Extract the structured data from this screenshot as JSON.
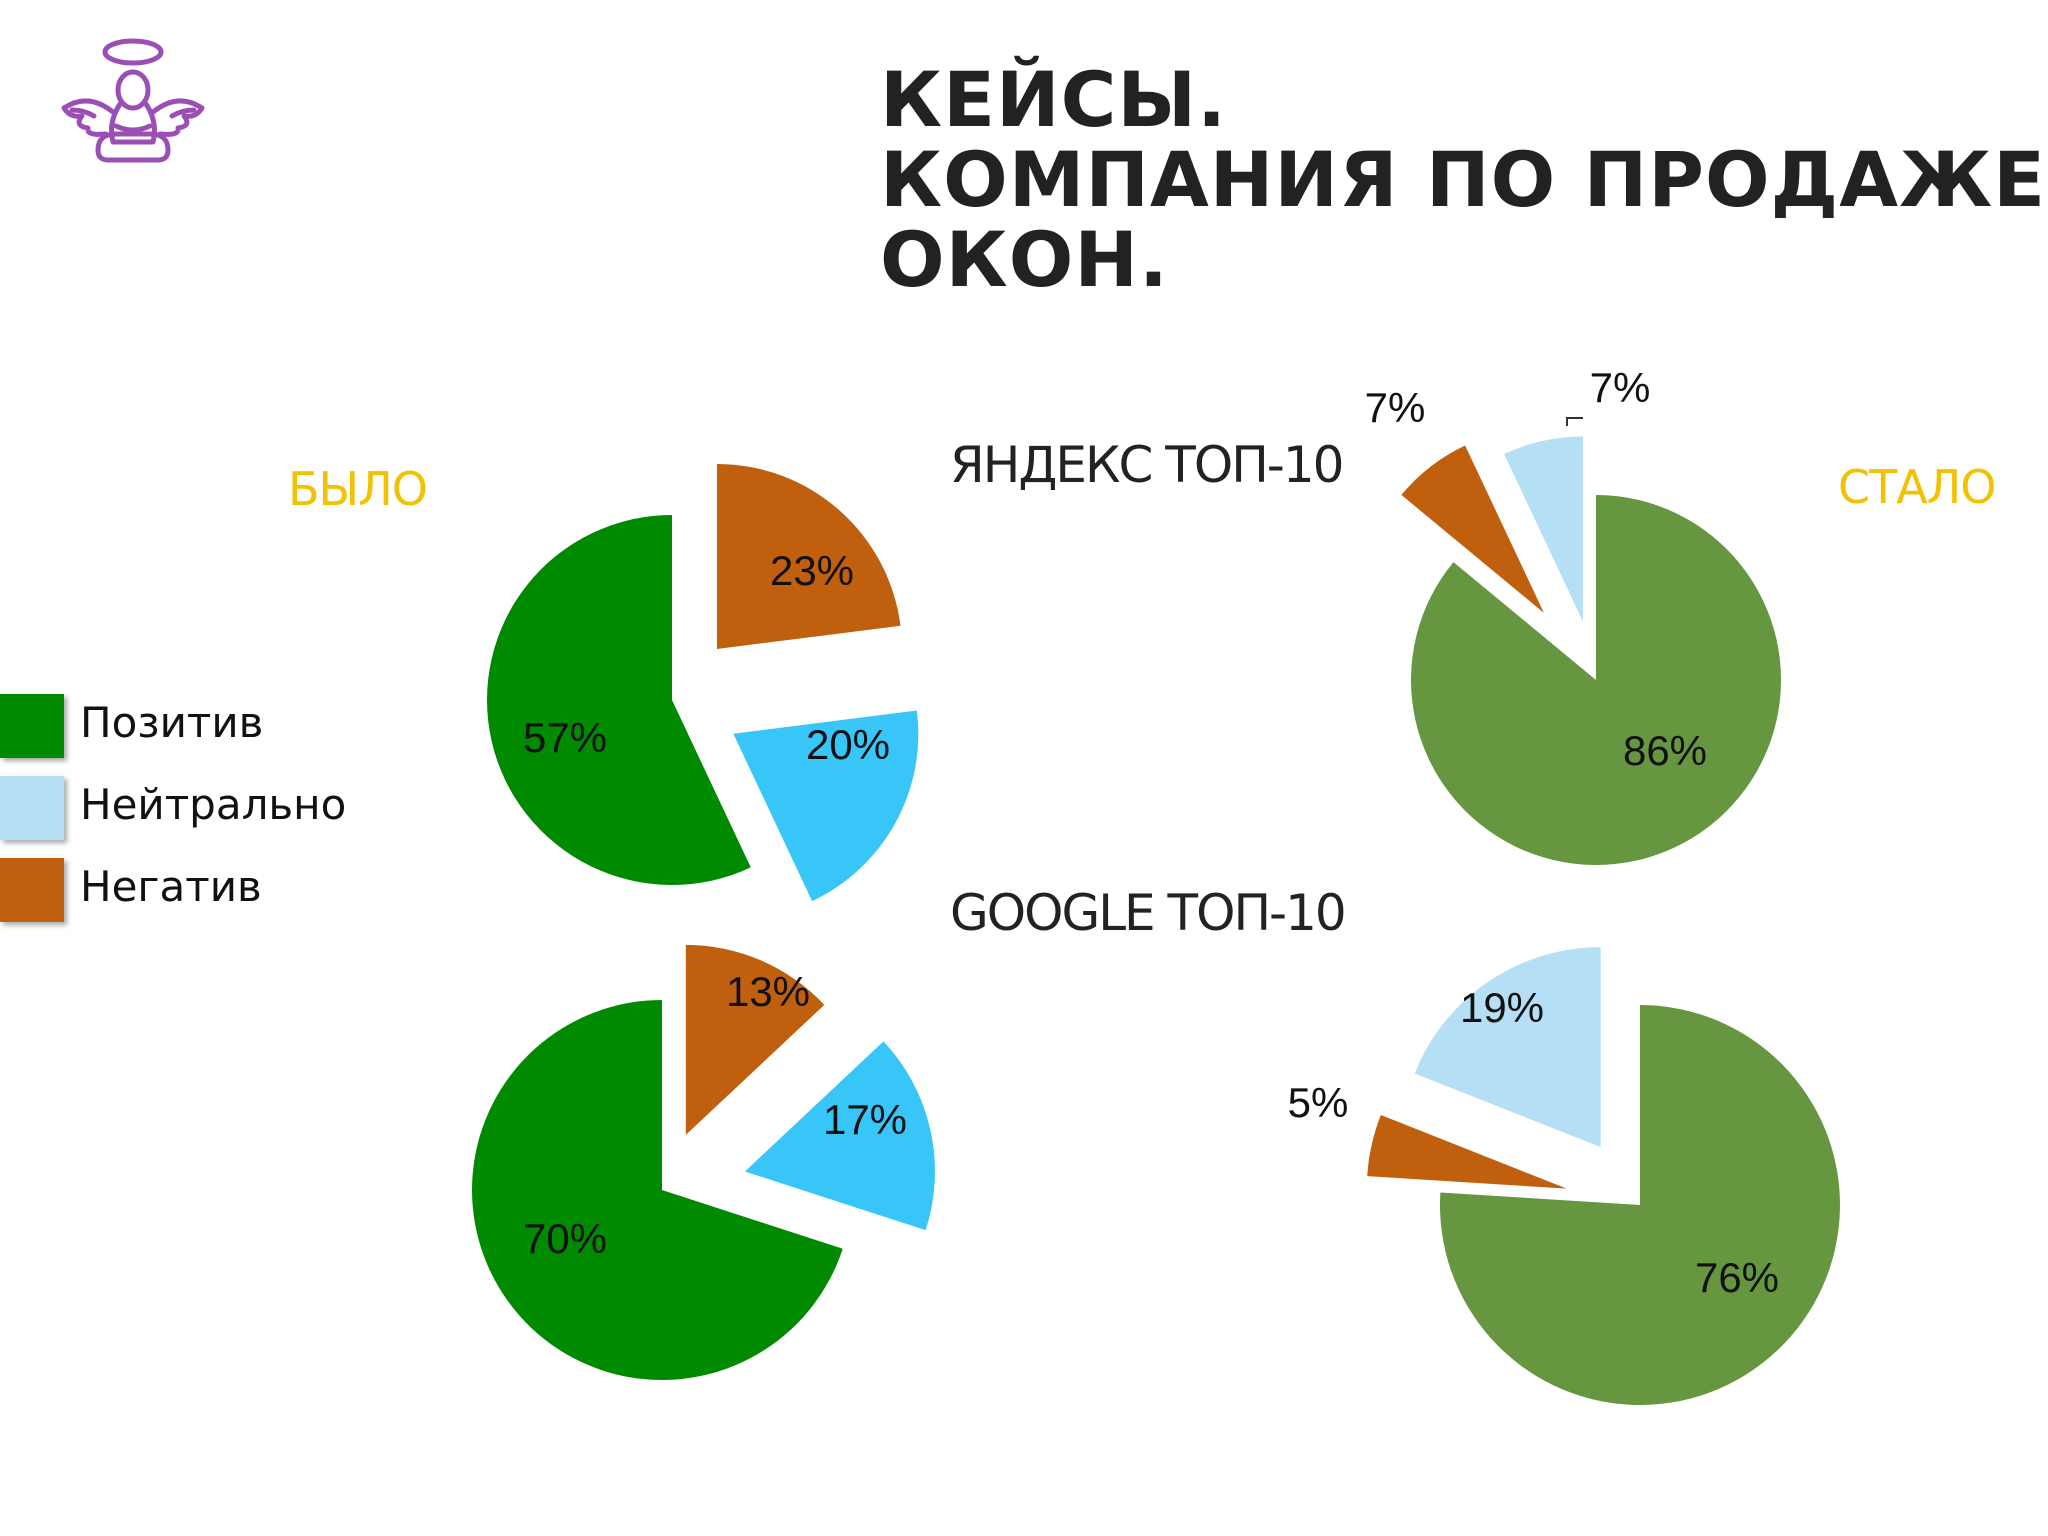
{
  "title": [
    "КЕЙСЫ.",
    "КОМПАНИЯ ПО ПРОДАЖЕ",
    "ОКОН."
  ],
  "labels": {
    "before": "БЫЛО",
    "after": "СТАЛО"
  },
  "engines": {
    "yandex": "ЯНДЕКС ТОП-10",
    "google": "GOOGLE ТОП-10"
  },
  "legend": [
    {
      "label": "Позитив",
      "color": "#008A00"
    },
    {
      "label": "Нейтрально",
      "color": "#B4DFF5"
    },
    {
      "label": "Негатив",
      "color": "#C0600F"
    }
  ],
  "colors": {
    "logo": "#9B4FB5",
    "before": {
      "positive": "#008A00",
      "neutral": "#38C5F7",
      "negative": "#C0600F"
    },
    "after": {
      "positive": "#66963F",
      "neutral": "#B4DFF5",
      "negative": "#C0600F"
    }
  },
  "chart_data": [
    {
      "type": "pie",
      "engine": "Яндекс",
      "period": "Было",
      "slices": [
        {
          "name": "Позитив",
          "value": 57,
          "label": "57%"
        },
        {
          "name": "Нейтрально",
          "value": 20,
          "label": "20%"
        },
        {
          "name": "Негатив",
          "value": 23,
          "label": "23%"
        }
      ]
    },
    {
      "type": "pie",
      "engine": "Яндекс",
      "period": "Стало",
      "slices": [
        {
          "name": "Позитив",
          "value": 86,
          "label": "86%"
        },
        {
          "name": "Нейтрально",
          "value": 7,
          "label": "7%"
        },
        {
          "name": "Негатив",
          "value": 7,
          "label": "7%"
        }
      ]
    },
    {
      "type": "pie",
      "engine": "Google",
      "period": "Было",
      "slices": [
        {
          "name": "Позитив",
          "value": 70,
          "label": "70%"
        },
        {
          "name": "Нейтрально",
          "value": 17,
          "label": "17%"
        },
        {
          "name": "Негатив",
          "value": 13,
          "label": "13%"
        }
      ]
    },
    {
      "type": "pie",
      "engine": "Google",
      "period": "Стало",
      "slices": [
        {
          "name": "Позитив",
          "value": 76,
          "label": "76%"
        },
        {
          "name": "Нейтрально",
          "value": 19,
          "label": "19%"
        },
        {
          "name": "Негатив",
          "value": 5,
          "label": "5%"
        }
      ]
    }
  ]
}
